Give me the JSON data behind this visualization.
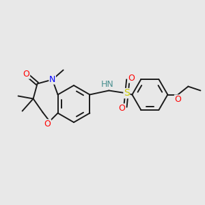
{
  "background_color": "#e8e8e8",
  "bond_color": "#1a1a1a",
  "atom_colors": {
    "O": "#ff0000",
    "N": "#0000ff",
    "NH": "#4a9090",
    "S": "#cccc00",
    "H": "#4a9090"
  },
  "figsize": [
    3.0,
    3.0
  ],
  "dpi": 100
}
